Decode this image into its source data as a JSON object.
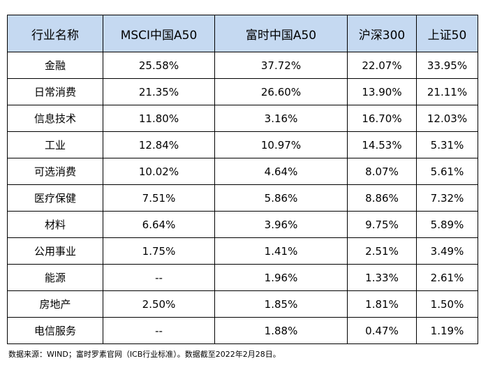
{
  "table": {
    "headers": [
      "行业名称",
      "MSCI中国A50",
      "富时中国A50",
      "沪深300",
      "上证50"
    ],
    "rows": [
      [
        "金融",
        "25.58%",
        "37.72%",
        "22.07%",
        "33.95%"
      ],
      [
        "日常消费",
        "21.35%",
        "26.60%",
        "13.90%",
        "21.11%"
      ],
      [
        "信息技术",
        "11.80%",
        "3.16%",
        "16.70%",
        "12.03%"
      ],
      [
        "工业",
        "12.84%",
        "10.97%",
        "14.53%",
        "5.31%"
      ],
      [
        "可选消费",
        "10.02%",
        "4.64%",
        "8.07%",
        "5.61%"
      ],
      [
        "医疗保健",
        "7.51%",
        "5.86%",
        "8.86%",
        "7.32%"
      ],
      [
        "材料",
        "6.64%",
        "3.96%",
        "9.75%",
        "5.89%"
      ],
      [
        "公用事业",
        "1.75%",
        "1.41%",
        "2.51%",
        "3.49%"
      ],
      [
        "能源",
        "--",
        "1.96%",
        "1.33%",
        "2.61%"
      ],
      [
        "房地产",
        "2.50%",
        "1.85%",
        "1.81%",
        "1.50%"
      ],
      [
        "电信服务",
        "--",
        "1.88%",
        "0.47%",
        "1.19%"
      ]
    ]
  },
  "footer": {
    "source_note": "数据来源：WIND；富时罗素官网（ICB行业标准）。数据截至2022年2月28日。"
  },
  "colors": {
    "header_background": "#c5d9f1",
    "border": "#000000"
  }
}
